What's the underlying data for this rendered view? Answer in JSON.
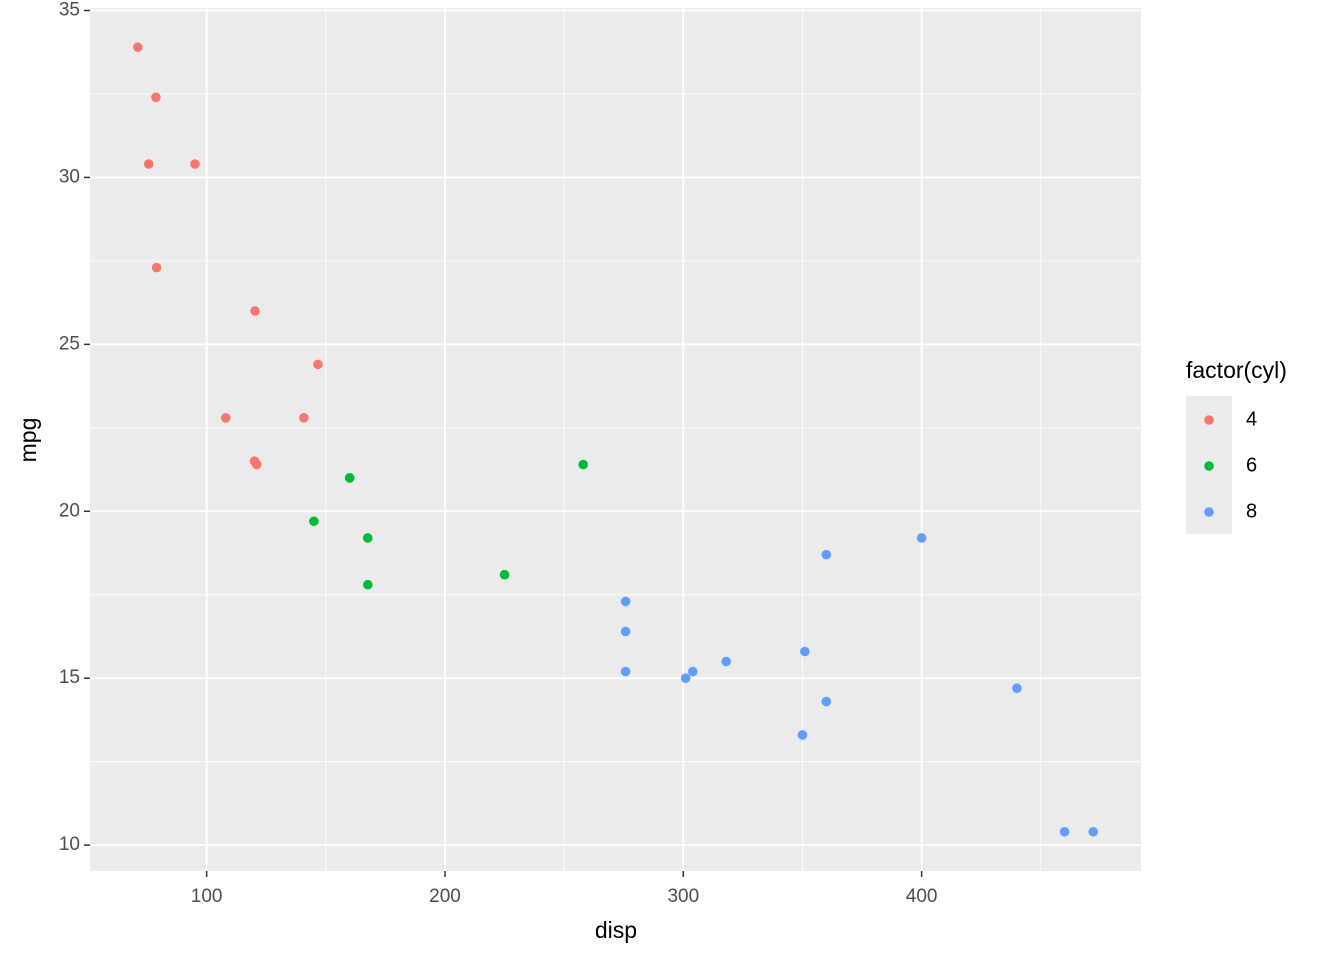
{
  "chart_data": {
    "type": "scatter",
    "x_label": "disp",
    "y_label": "mpg",
    "legend_title": "factor(cyl)",
    "xlim": [
      51.05,
      492.05
    ],
    "ylim": [
      9.225,
      35.075
    ],
    "xticks": [
      100,
      200,
      300,
      400
    ],
    "yticks": [
      10,
      15,
      20,
      25,
      30,
      35
    ],
    "x_minor_grid": [
      150,
      250,
      350,
      450
    ],
    "y_minor_grid": [
      12.5,
      17.5,
      22.5,
      27.5,
      32.5
    ],
    "grid": true,
    "legend": "right",
    "series": [
      {
        "name": "4",
        "color": "#F8766D",
        "x": [
          108,
          146.7,
          140.8,
          78.7,
          75.7,
          71.1,
          120.1,
          79,
          120.3,
          95.1,
          121
        ],
        "values": [
          22.8,
          24.4,
          22.8,
          32.4,
          30.4,
          33.9,
          21.5,
          27.3,
          26,
          30.4,
          21.4
        ]
      },
      {
        "name": "6",
        "color": "#00BA38",
        "x": [
          160,
          160,
          258,
          225,
          167.6,
          167.6,
          145
        ],
        "values": [
          21,
          21,
          21.4,
          18.1,
          19.2,
          17.8,
          19.7
        ]
      },
      {
        "name": "8",
        "color": "#619CFF",
        "x": [
          360,
          360,
          275.8,
          275.8,
          275.8,
          472,
          460,
          440,
          318,
          304,
          350,
          400,
          351,
          301
        ],
        "values": [
          18.7,
          14.3,
          16.4,
          17.3,
          15.2,
          10.4,
          10.4,
          14.7,
          15.5,
          15.2,
          13.3,
          19.2,
          15.8,
          15
        ]
      }
    ]
  }
}
